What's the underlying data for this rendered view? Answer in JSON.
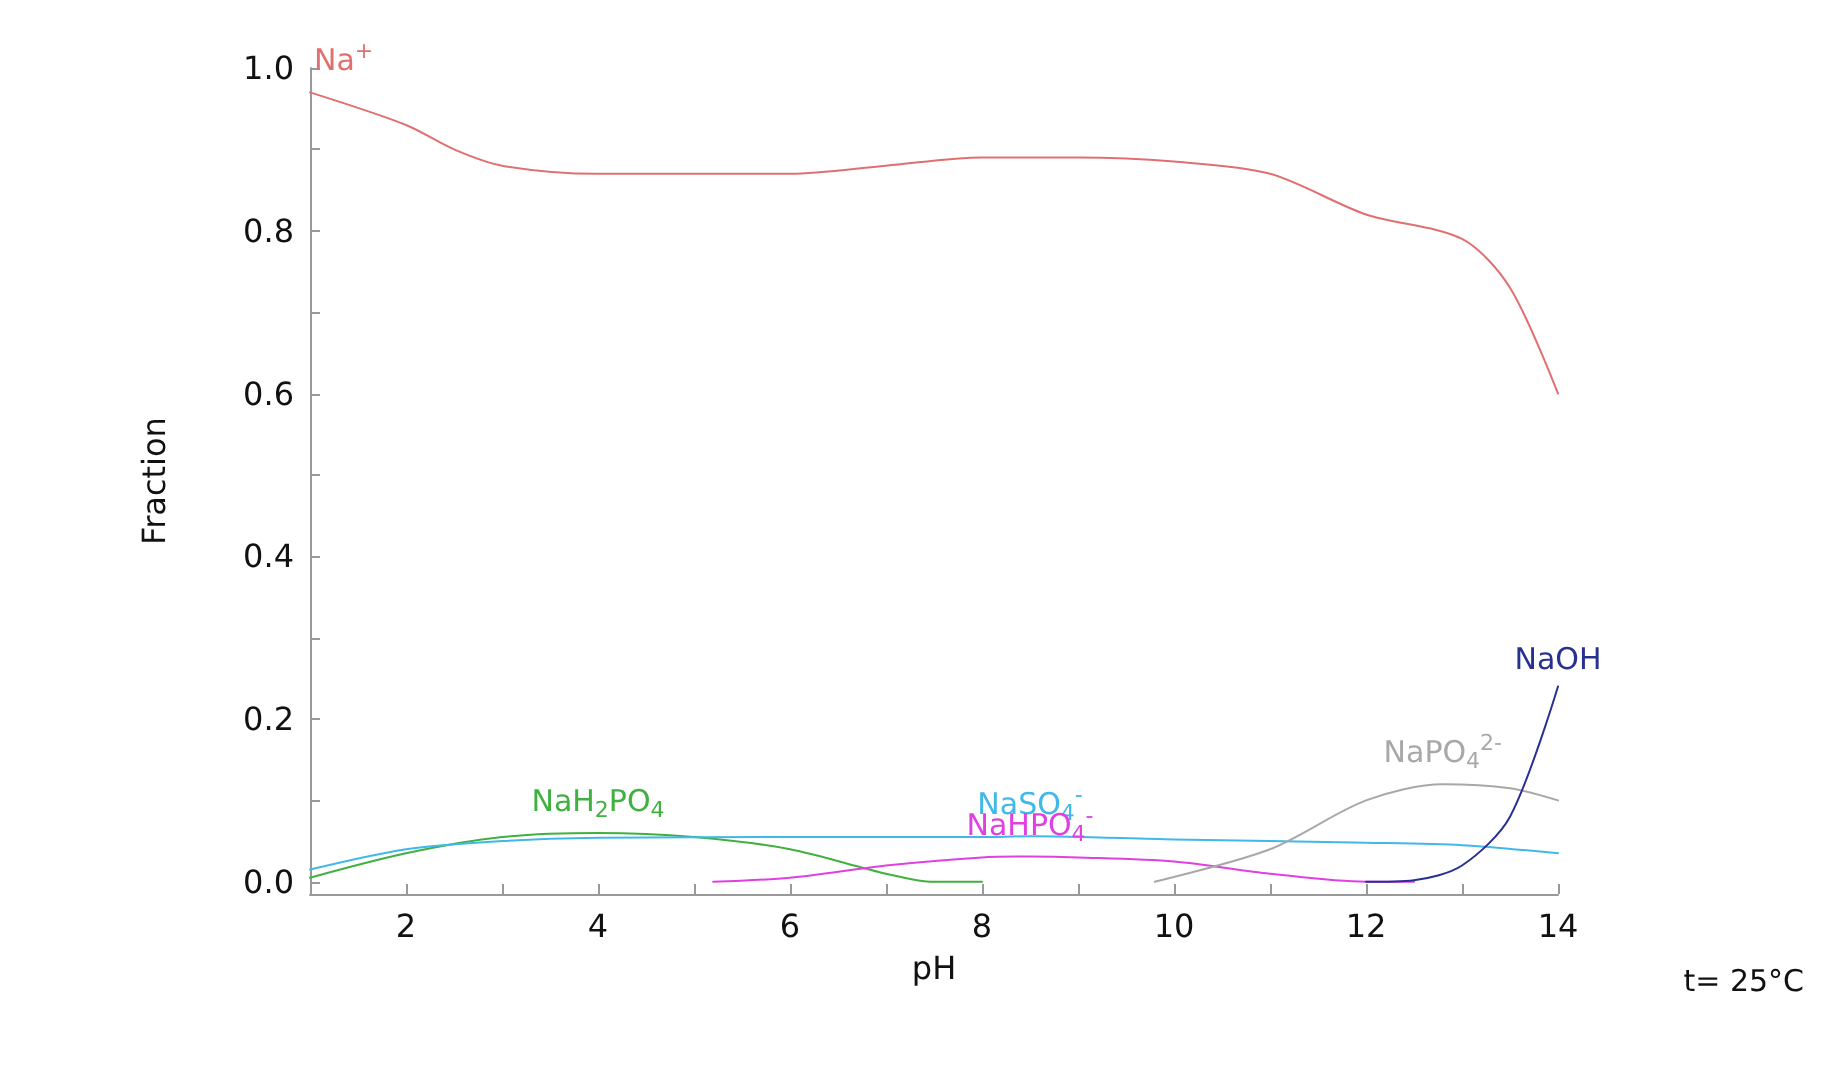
{
  "chart_data": {
    "type": "line",
    "xlabel": "pH",
    "ylabel": "Fraction",
    "x": [
      1,
      2,
      2.5,
      3,
      4,
      5,
      6,
      7,
      8,
      9,
      10,
      11,
      12,
      13,
      13.5,
      14
    ],
    "series": [
      {
        "name": "Na$^{+}$",
        "color": "#e07070",
        "values": [
          0.97,
          0.93,
          0.9,
          0.88,
          0.87,
          0.87,
          0.87,
          0.88,
          0.89,
          0.89,
          0.885,
          0.87,
          0.82,
          0.79,
          0.73,
          0.6
        ]
      },
      {
        "name": "NaH$_{2}$PO$_{4}$",
        "color": "#40b040",
        "x": [
          1,
          2,
          3,
          4,
          5,
          6,
          7,
          7.5,
          8
        ],
        "values": [
          0.005,
          0.035,
          0.055,
          0.06,
          0.055,
          0.04,
          0.01,
          0.0,
          0.0
        ]
      },
      {
        "name": "NaSO$_{4}$$^{-}$",
        "color": "#40b8e8",
        "x": [
          1,
          2,
          3,
          4,
          6,
          8,
          8.5,
          10,
          12,
          13,
          14
        ],
        "values": [
          0.015,
          0.04,
          0.05,
          0.054,
          0.055,
          0.055,
          0.056,
          0.052,
          0.048,
          0.045,
          0.035
        ]
      },
      {
        "name": "NaHPO$_{4}$$^{-}$",
        "color": "#e040e0",
        "x": [
          5.2,
          6,
          7,
          8,
          8.5,
          9,
          10,
          11,
          12,
          12.5
        ],
        "values": [
          0.0,
          0.005,
          0.02,
          0.03,
          0.031,
          0.03,
          0.025,
          0.01,
          0.0,
          0.0
        ]
      },
      {
        "name": "NaPO$_{4}$$^{2-}$",
        "color": "#a8a8a8",
        "x": [
          9.8,
          11,
          12,
          12.8,
          13.5,
          14
        ],
        "values": [
          0.0,
          0.04,
          0.1,
          0.12,
          0.115,
          0.1
        ]
      },
      {
        "name": "NaOH",
        "color": "#283090",
        "x": [
          12,
          12.5,
          13,
          13.5,
          14
        ],
        "values": [
          0.0,
          0.002,
          0.02,
          0.08,
          0.24
        ]
      }
    ],
    "xlim": [
      1,
      14
    ],
    "xticks": [
      {
        "value": 1,
        "label": null
      },
      2,
      {
        "value": 3,
        "label": null
      },
      4,
      {
        "value": 5,
        "label": null
      },
      6,
      {
        "value": 7,
        "label": null
      },
      8,
      {
        "value": 9,
        "label": null
      },
      10,
      {
        "value": 11,
        "label": null
      },
      12,
      {
        "value": 13,
        "label": null
      },
      14
    ],
    "ylim": [
      -0.015,
      1.0
    ],
    "yticks": [
      {
        "value": 0,
        "label": "0.0"
      },
      {
        "value": 0.1,
        "label": null
      },
      0.2,
      {
        "value": 0.3,
        "label": null
      },
      0.4,
      {
        "value": 0.5,
        "label": null
      },
      0.6,
      {
        "value": 0.7,
        "label": null
      },
      0.8,
      {
        "value": 0.9,
        "label": null
      },
      {
        "value": 1,
        "label": "1.0"
      }
    ],
    "grid": false,
    "legend": false,
    "marker": "none",
    "line_style": "solid",
    "annotations": [
      "t= 25°C"
    ]
  }
}
